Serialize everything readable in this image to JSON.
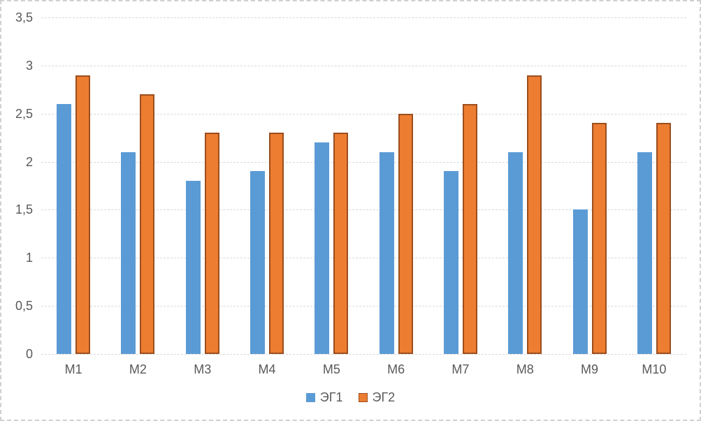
{
  "frame": {
    "background": "#FFFFFF",
    "border_color": "#D0D0D0"
  },
  "chart_data": {
    "type": "bar",
    "title": "",
    "xlabel": "",
    "ylabel": "",
    "categories": [
      "М1",
      "М2",
      "М3",
      "М4",
      "М5",
      "М6",
      "М7",
      "М8",
      "М9",
      "М10"
    ],
    "series": [
      {
        "name": "ЭГ1",
        "slug": "eg1",
        "color": "#5B9BD5",
        "values": [
          2.6,
          2.1,
          1.8,
          1.9,
          2.2,
          2.1,
          1.9,
          2.1,
          1.5,
          2.1
        ]
      },
      {
        "name": "ЭГ2",
        "slug": "eg2",
        "color": "#ED7D31",
        "border_color": "#9C4E1E",
        "values": [
          2.9,
          2.7,
          2.3,
          2.3,
          2.3,
          2.5,
          2.6,
          2.9,
          2.4,
          2.4
        ]
      }
    ],
    "ylim": [
      0,
      3.5
    ],
    "ytick_step": 0.5,
    "ytick_labels": [
      "0",
      "0,5",
      "1",
      "1,5",
      "2",
      "2,5",
      "3",
      "3,5"
    ],
    "decimal_separator": ",",
    "grid": true,
    "gridline_color": "#D9D9D9",
    "axis_text_color": "#595959",
    "legend_position": "bottom"
  }
}
